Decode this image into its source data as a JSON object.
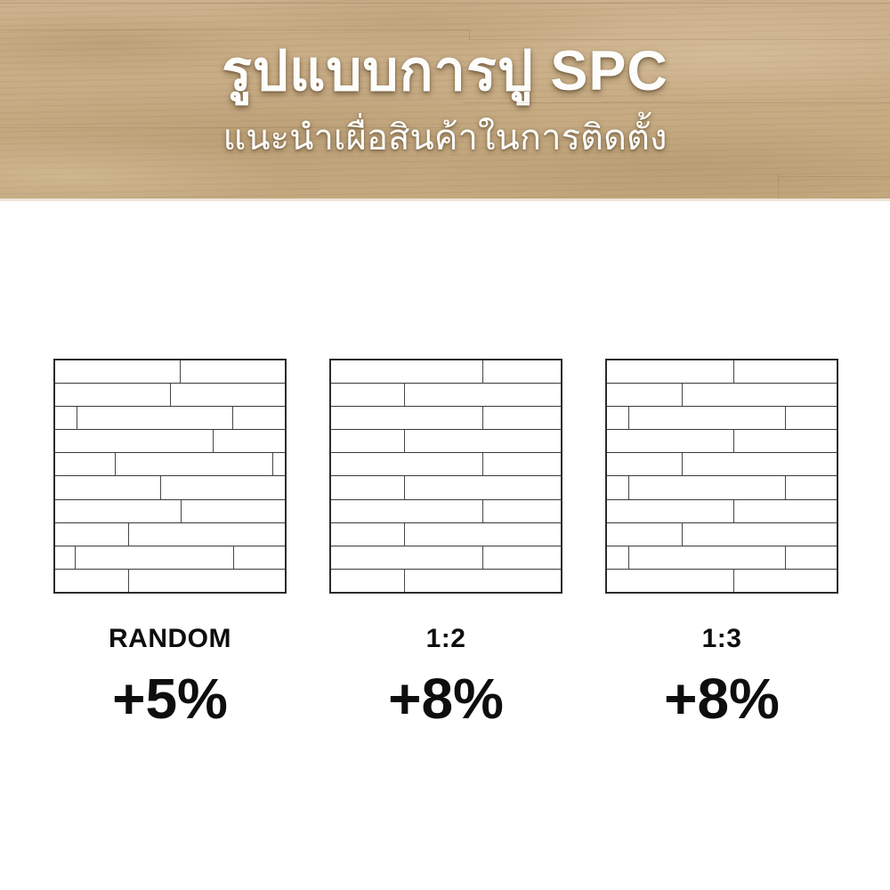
{
  "header": {
    "title": "รูปแบบการปู SPC",
    "subtitle": "แนะนำเผื่อสินค้าในการติดตั้ง"
  },
  "colors": {
    "wood_base": "#c8ae87",
    "header_text": "#fdfdfb",
    "diagram_line": "#3a3a3a",
    "diagram_border": "#2b2b2b",
    "label_text": "#0e0e0e",
    "background": "#ffffff"
  },
  "patterns": [
    {
      "label": "RANDOM",
      "extra": "+5%",
      "rows": [
        [
          0.544
        ],
        [
          0.499
        ],
        [
          0.093,
          0.773
        ],
        [
          0.687
        ],
        [
          0.261,
          0.947
        ],
        [
          0.457
        ],
        [
          0.546
        ],
        [
          0.318
        ],
        [
          0.087,
          0.776
        ],
        [
          0.318
        ]
      ]
    },
    {
      "label": "1:2",
      "extra": "+8%",
      "rows": [
        [
          0.659
        ],
        [
          0.317
        ],
        [
          0.659
        ],
        [
          0.317
        ],
        [
          0.659
        ],
        [
          0.317
        ],
        [
          0.659
        ],
        [
          0.317
        ],
        [
          0.659
        ],
        [
          0.317
        ]
      ]
    },
    {
      "label": "1:3",
      "extra": "+8%",
      "rows": [
        [
          0.552
        ],
        [
          0.324
        ],
        [
          0.094,
          0.775
        ],
        [
          0.552
        ],
        [
          0.324
        ],
        [
          0.094,
          0.775
        ],
        [
          0.552
        ],
        [
          0.324
        ],
        [
          0.094,
          0.775
        ],
        [
          0.552
        ]
      ]
    }
  ]
}
